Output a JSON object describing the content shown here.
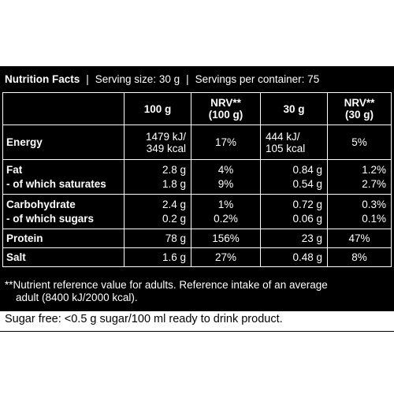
{
  "header": {
    "title": "Nutrition Facts",
    "separator": "|",
    "serving": "Serving size: 30 g",
    "servings": "Servings per container: 75"
  },
  "columns": {
    "c1": "100 g",
    "c2_line1": "NRV**",
    "c2_line2": "(100 g)",
    "c3": "30 g",
    "c4_line1": "NRV**",
    "c4_line2": "(30 g)"
  },
  "rows": {
    "energy": {
      "label": "Energy",
      "v100_a": "1479 kJ/",
      "v100_b": "349 kcal",
      "nrv100": "17%",
      "v30_a": "444 kJ/",
      "v30_b": "105 kcal",
      "nrv30": "5%"
    },
    "fat": {
      "label": "Fat",
      "v100": "2.8 g",
      "nrv100": "4%",
      "v30": "0.84 g",
      "nrv30": "1.2%"
    },
    "saturates": {
      "label": "- of which saturates",
      "v100": "1.8 g",
      "nrv100": "9%",
      "v30": "0.54 g",
      "nrv30": "2.7%"
    },
    "carb": {
      "label": "Carbohydrate",
      "v100": "2.4 g",
      "nrv100": "1%",
      "v30": "0.72 g",
      "nrv30": "0.3%"
    },
    "sugars": {
      "label": "- of which sugars",
      "v100": "0.2 g",
      "nrv100": "0.2%",
      "v30": "0.06 g",
      "nrv30": "0.1%"
    },
    "protein": {
      "label": "Protein",
      "v100": "78 g",
      "nrv100": "156%",
      "v30": "23 g",
      "nrv30": "47%"
    },
    "salt": {
      "label": "Salt",
      "v100": "1.6 g",
      "nrv100": "27%",
      "v30": "0.48 g",
      "nrv30": "8%"
    }
  },
  "footnote": {
    "line1": "**Nutrient reference value for adults. Reference intake of an average",
    "line2": "adult (8400 kJ/2000 kcal)."
  },
  "sugar_free": "Sugar free: <0.5 g sugar/100 ml ready to drink product."
}
